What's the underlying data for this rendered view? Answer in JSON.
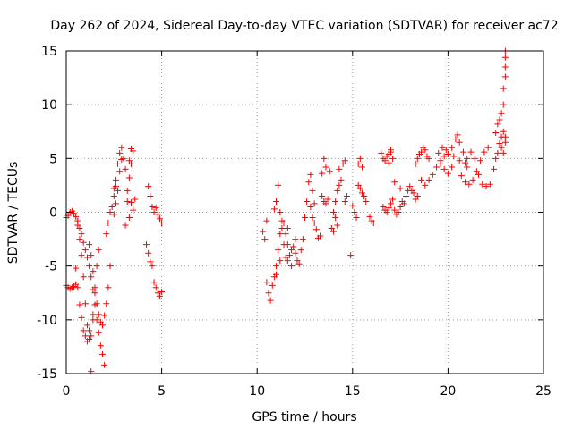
{
  "chart_data": {
    "type": "scatter",
    "title": "Day 262 of 2024, Sidereal Day-to-day VTEC variation (SDTVAR) for receiver ac72",
    "xlabel": "GPS time / hours",
    "ylabel": "SDTVAR / TECUs",
    "xlim": [
      0,
      25
    ],
    "ylim": [
      -15,
      15
    ],
    "xticks": [
      "0",
      "5",
      "10",
      "15",
      "20",
      "25"
    ],
    "yticks": [
      "-15",
      "-10",
      "-5",
      "0",
      "5",
      "10",
      "15"
    ],
    "grid": true,
    "marker": "+",
    "color": "#ff0000",
    "series": [
      {
        "name": "SDTVAR",
        "points": [
          [
            0.0,
            -6.8
          ],
          [
            0.1,
            -7.0
          ],
          [
            0.2,
            -7.1
          ],
          [
            0.3,
            -7.0
          ],
          [
            0.4,
            -6.9
          ],
          [
            0.5,
            -6.7
          ],
          [
            0.0,
            -0.5
          ],
          [
            0.1,
            -0.3
          ],
          [
            0.2,
            0.0
          ],
          [
            0.3,
            0.1
          ],
          [
            0.4,
            -0.1
          ],
          [
            0.5,
            -0.4
          ],
          [
            0.6,
            -1.2
          ],
          [
            0.7,
            -2.5
          ],
          [
            0.8,
            -4.0
          ],
          [
            0.9,
            -6.0
          ],
          [
            1.0,
            -8.5
          ],
          [
            1.1,
            -10.5
          ],
          [
            1.2,
            -11.8
          ],
          [
            1.3,
            -11.5
          ],
          [
            1.4,
            -10.0
          ],
          [
            1.5,
            -7.5
          ],
          [
            1.6,
            -5.0
          ],
          [
            1.7,
            -3.5
          ],
          [
            0.5,
            -5.2
          ],
          [
            0.6,
            -7.0
          ],
          [
            0.7,
            -8.6
          ],
          [
            0.8,
            -9.8
          ],
          [
            0.9,
            -11.0
          ],
          [
            1.0,
            -11.5
          ],
          [
            1.1,
            -12.0
          ],
          [
            1.2,
            -11.0
          ],
          [
            1.4,
            -9.5
          ],
          [
            0.6,
            -0.8
          ],
          [
            0.7,
            -1.5
          ],
          [
            0.8,
            -2.0
          ],
          [
            0.9,
            -2.8
          ],
          [
            1.0,
            -3.5
          ],
          [
            1.1,
            -4.2
          ],
          [
            1.2,
            -5.0
          ],
          [
            1.3,
            -6.0
          ],
          [
            1.4,
            -7.2
          ],
          [
            1.5,
            -8.6
          ],
          [
            1.6,
            -10.0
          ],
          [
            1.7,
            -11.2
          ],
          [
            1.8,
            -12.4
          ],
          [
            1.9,
            -13.2
          ],
          [
            2.0,
            -14.2
          ],
          [
            1.3,
            -14.8
          ],
          [
            1.2,
            -3.0
          ],
          [
            1.3,
            -4.0
          ],
          [
            1.4,
            -5.5
          ],
          [
            1.5,
            -7.0
          ],
          [
            1.6,
            -8.5
          ],
          [
            1.7,
            -9.5
          ],
          [
            1.8,
            -10.2
          ],
          [
            1.9,
            -10.5
          ],
          [
            2.0,
            -9.6
          ],
          [
            2.1,
            -8.5
          ],
          [
            2.2,
            -7.0
          ],
          [
            2.3,
            -5.0
          ],
          [
            2.1,
            -2.0
          ],
          [
            2.2,
            -1.0
          ],
          [
            2.3,
            0.0
          ],
          [
            2.4,
            0.5
          ],
          [
            2.5,
            1.5
          ],
          [
            2.6,
            3.0
          ],
          [
            2.7,
            4.5
          ],
          [
            2.8,
            5.5
          ],
          [
            2.9,
            6.0
          ],
          [
            3.0,
            5.0
          ],
          [
            3.1,
            4.0
          ],
          [
            2.5,
            -0.2
          ],
          [
            2.6,
            0.8
          ],
          [
            2.7,
            2.0
          ],
          [
            2.8,
            3.8
          ],
          [
            2.9,
            4.9
          ],
          [
            2.5,
            2.2
          ],
          [
            2.6,
            2.4
          ],
          [
            3.2,
            2.0
          ],
          [
            3.3,
            3.2
          ],
          [
            3.4,
            4.5
          ],
          [
            3.5,
            5.7
          ],
          [
            3.4,
            5.9
          ],
          [
            3.3,
            4.8
          ],
          [
            3.2,
            1.0
          ],
          [
            3.4,
            0.9
          ],
          [
            3.6,
            1.2
          ],
          [
            3.1,
            -1.2
          ],
          [
            3.3,
            -0.5
          ],
          [
            3.5,
            0.2
          ],
          [
            4.2,
            -3.0
          ],
          [
            4.3,
            -3.8
          ],
          [
            4.4,
            -4.6
          ],
          [
            4.5,
            -5.0
          ],
          [
            4.3,
            2.4
          ],
          [
            4.4,
            1.5
          ],
          [
            4.5,
            0.5
          ],
          [
            4.6,
            0.0
          ],
          [
            4.7,
            0.4
          ],
          [
            4.8,
            -0.2
          ],
          [
            4.9,
            -0.6
          ],
          [
            5.0,
            -1.0
          ],
          [
            4.6,
            -6.5
          ],
          [
            4.7,
            -7.0
          ],
          [
            4.8,
            -7.5
          ],
          [
            4.9,
            -7.8
          ],
          [
            5.0,
            -7.4
          ],
          [
            10.3,
            -1.8
          ],
          [
            10.4,
            -2.5
          ],
          [
            10.5,
            -6.5
          ],
          [
            10.6,
            -7.5
          ],
          [
            10.7,
            -8.2
          ],
          [
            10.5,
            -0.8
          ],
          [
            10.8,
            -6.8
          ],
          [
            10.9,
            -6.0
          ],
          [
            11.0,
            -5.0
          ],
          [
            11.1,
            -3.5
          ],
          [
            11.2,
            -2.0
          ],
          [
            11.3,
            -0.8
          ],
          [
            10.9,
            0.3
          ],
          [
            11.0,
            1.0
          ],
          [
            11.1,
            2.5
          ],
          [
            11.2,
            0.0
          ],
          [
            11.3,
            -1.5
          ],
          [
            11.4,
            -3.0
          ],
          [
            11.5,
            -4.2
          ],
          [
            11.6,
            -4.5
          ],
          [
            11.7,
            -4.0
          ],
          [
            11.8,
            -3.5
          ],
          [
            11.9,
            -3.2
          ],
          [
            12.0,
            -3.8
          ],
          [
            12.1,
            -4.5
          ],
          [
            12.2,
            -4.8
          ],
          [
            11.5,
            -2.0
          ],
          [
            11.6,
            -3.0
          ],
          [
            11.8,
            -5.0
          ],
          [
            12.0,
            -2.5
          ],
          [
            11.0,
            -5.8
          ],
          [
            11.2,
            -4.5
          ],
          [
            11.4,
            -1.0
          ],
          [
            11.6,
            -1.5
          ],
          [
            12.3,
            -3.5
          ],
          [
            12.4,
            -2.5
          ],
          [
            12.5,
            -0.5
          ],
          [
            12.6,
            1.0
          ],
          [
            12.7,
            2.8
          ],
          [
            12.8,
            3.5
          ],
          [
            12.9,
            2.0
          ],
          [
            13.0,
            0.8
          ],
          [
            12.8,
            0.5
          ],
          [
            12.9,
            -0.5
          ],
          [
            13.0,
            -1.0
          ],
          [
            13.1,
            -1.6
          ],
          [
            13.2,
            -2.4
          ],
          [
            13.3,
            -2.2
          ],
          [
            13.4,
            3.6
          ],
          [
            13.5,
            5.0
          ],
          [
            13.6,
            4.2
          ],
          [
            13.8,
            3.8
          ],
          [
            13.4,
            1.5
          ],
          [
            13.5,
            1.0
          ],
          [
            13.6,
            0.8
          ],
          [
            13.7,
            1.2
          ],
          [
            14.0,
            0.0
          ],
          [
            14.1,
            1.0
          ],
          [
            14.2,
            2.0
          ],
          [
            14.3,
            2.5
          ],
          [
            14.4,
            3.0
          ],
          [
            14.5,
            4.5
          ],
          [
            14.6,
            4.8
          ],
          [
            14.3,
            4.0
          ],
          [
            14.1,
            -0.5
          ],
          [
            14.2,
            -1.2
          ],
          [
            13.9,
            -1.5
          ],
          [
            14.0,
            -1.8
          ],
          [
            14.6,
            1.0
          ],
          [
            14.7,
            1.5
          ],
          [
            15.0,
            0.6
          ],
          [
            15.1,
            0.0
          ],
          [
            15.2,
            -0.5
          ],
          [
            14.9,
            -4.0
          ],
          [
            15.3,
            4.5
          ],
          [
            15.4,
            5.0
          ],
          [
            15.5,
            4.2
          ],
          [
            15.3,
            2.5
          ],
          [
            15.4,
            2.2
          ],
          [
            15.5,
            1.8
          ],
          [
            15.6,
            1.5
          ],
          [
            15.7,
            1.0
          ],
          [
            15.9,
            -0.4
          ],
          [
            16.0,
            -0.8
          ],
          [
            16.1,
            -1.0
          ],
          [
            16.5,
            5.5
          ],
          [
            16.6,
            5.0
          ],
          [
            16.7,
            4.8
          ],
          [
            16.8,
            5.2
          ],
          [
            16.9,
            5.4
          ],
          [
            17.0,
            5.6
          ],
          [
            17.1,
            5.0
          ],
          [
            17.0,
            5.8
          ],
          [
            16.9,
            4.6
          ],
          [
            16.6,
            0.5
          ],
          [
            16.7,
            0.2
          ],
          [
            16.8,
            0.0
          ],
          [
            16.9,
            0.4
          ],
          [
            17.0,
            0.8
          ],
          [
            17.1,
            1.2
          ],
          [
            17.2,
            0.2
          ],
          [
            17.3,
            -0.2
          ],
          [
            17.4,
            0.0
          ],
          [
            17.5,
            0.5
          ],
          [
            17.6,
            1.0
          ],
          [
            17.7,
            0.8
          ],
          [
            17.8,
            1.5
          ],
          [
            17.9,
            2.0
          ],
          [
            18.0,
            2.4
          ],
          [
            18.1,
            2.0
          ],
          [
            18.2,
            1.8
          ],
          [
            18.3,
            1.2
          ],
          [
            18.4,
            1.5
          ],
          [
            17.2,
            2.8
          ],
          [
            17.5,
            2.2
          ],
          [
            18.3,
            4.5
          ],
          [
            18.4,
            5.0
          ],
          [
            18.5,
            5.4
          ],
          [
            18.6,
            5.6
          ],
          [
            18.7,
            6.0
          ],
          [
            18.8,
            5.8
          ],
          [
            18.9,
            5.2
          ],
          [
            19.0,
            5.0
          ],
          [
            18.6,
            3.0
          ],
          [
            18.8,
            2.5
          ],
          [
            19.0,
            3.0
          ],
          [
            19.2,
            3.5
          ],
          [
            19.4,
            4.2
          ],
          [
            19.6,
            4.8
          ],
          [
            19.8,
            5.2
          ],
          [
            20.0,
            5.4
          ],
          [
            20.2,
            6.0
          ],
          [
            20.4,
            6.8
          ],
          [
            20.5,
            7.2
          ],
          [
            20.6,
            6.5
          ],
          [
            20.8,
            5.6
          ],
          [
            21.0,
            5.0
          ],
          [
            20.2,
            4.2
          ],
          [
            20.0,
            3.6
          ],
          [
            19.8,
            4.0
          ],
          [
            19.6,
            4.5
          ],
          [
            19.5,
            5.5
          ],
          [
            19.7,
            6.0
          ],
          [
            19.9,
            5.8
          ],
          [
            20.3,
            5.2
          ],
          [
            20.6,
            4.8
          ],
          [
            20.7,
            3.4
          ],
          [
            20.9,
            2.8
          ],
          [
            21.1,
            2.6
          ],
          [
            21.3,
            3.0
          ],
          [
            21.5,
            3.8
          ],
          [
            21.7,
            4.8
          ],
          [
            21.9,
            5.6
          ],
          [
            22.1,
            6.0
          ],
          [
            21.6,
            3.5
          ],
          [
            21.8,
            2.6
          ],
          [
            22.0,
            2.4
          ],
          [
            22.2,
            2.6
          ],
          [
            22.4,
            4.0
          ],
          [
            22.5,
            5.0
          ],
          [
            22.6,
            5.5
          ],
          [
            22.7,
            6.4
          ],
          [
            22.8,
            7.0
          ],
          [
            22.9,
            7.5
          ],
          [
            23.0,
            7.0
          ],
          [
            22.5,
            7.4
          ],
          [
            22.6,
            8.2
          ],
          [
            22.8,
            9.2
          ],
          [
            22.9,
            10.0
          ],
          [
            22.9,
            11.5
          ],
          [
            23.0,
            12.6
          ],
          [
            23.0,
            13.5
          ],
          [
            23.0,
            14.4
          ],
          [
            23.0,
            15.0
          ],
          [
            22.7,
            8.6
          ],
          [
            22.8,
            6.0
          ],
          [
            22.9,
            5.5
          ],
          [
            23.0,
            6.5
          ],
          [
            21.2,
            5.6
          ],
          [
            21.4,
            5.0
          ],
          [
            21.0,
            4.2
          ],
          [
            20.9,
            4.6
          ]
        ]
      }
    ]
  }
}
